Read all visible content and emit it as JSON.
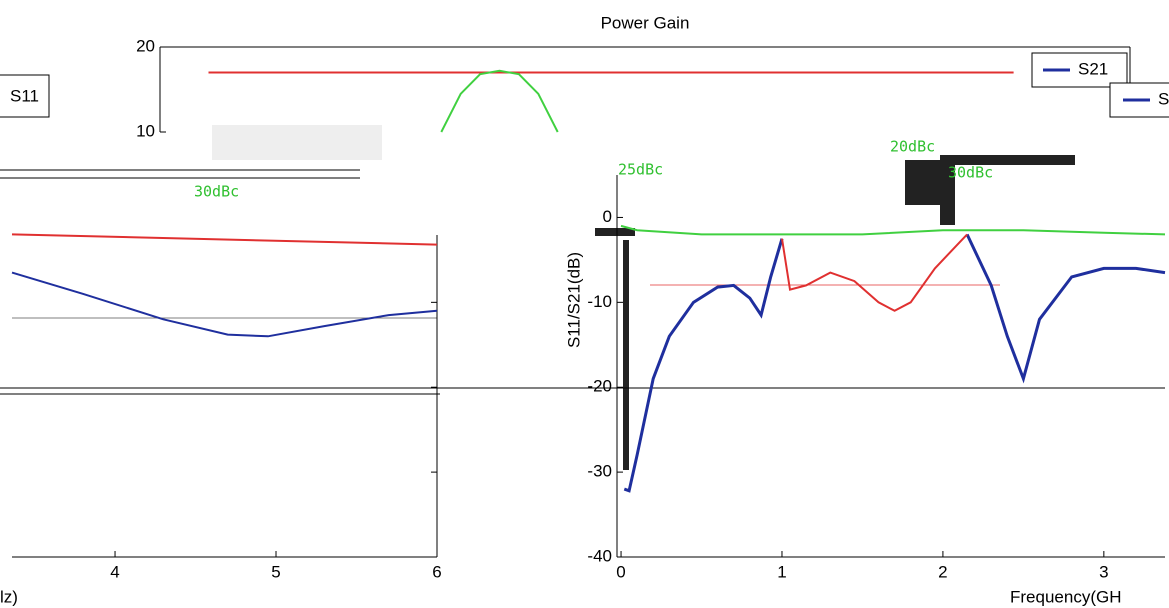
{
  "chart_data": [
    {
      "type": "line",
      "ylabel": "S11/S21(dB)",
      "xlabel": "Frequency(GH",
      "xlim": [
        -0.05,
        3.38
      ],
      "ylim": [
        -40,
        5
      ],
      "xticks": [
        0,
        1,
        2,
        3
      ],
      "yticks": [
        -40,
        -30,
        -20,
        -10,
        0
      ],
      "series": [
        {
          "name": "S21",
          "color": "#1f2f9e",
          "x": [
            0.02,
            0.05,
            0.1,
            0.2,
            0.3,
            0.45,
            0.6,
            0.7,
            0.8,
            0.87,
            0.93,
            1.0,
            1.5,
            2.15,
            2.3,
            2.4,
            2.5,
            2.6,
            2.8,
            3.0,
            3.2,
            3.38
          ],
          "values": [
            -32,
            -32.2,
            -28,
            -19,
            -14,
            -10,
            -8.2,
            -8,
            -9.5,
            -11.5,
            -7,
            -2.5,
            null,
            -2,
            -8,
            -14,
            -19,
            -12,
            -7,
            -6,
            -6,
            -6.5
          ]
        },
        {
          "color": "#e03030",
          "x": [
            1.0,
            1.05,
            1.15,
            1.3,
            1.45,
            1.6,
            1.7,
            1.8,
            1.95,
            2.1,
            2.15
          ],
          "values": [
            -2.5,
            -8.5,
            -8,
            -6.5,
            -7.5,
            -10,
            -11,
            -10,
            -6,
            -3,
            -2
          ]
        },
        {
          "color": "#40d040",
          "x": [
            0,
            0.1,
            0.5,
            1,
            1.5,
            2,
            2.5,
            3,
            3.38
          ],
          "values": [
            -1,
            -1.5,
            -2,
            -2,
            -2,
            -1.5,
            -1.5,
            -1.8,
            -2
          ]
        }
      ],
      "annotations": [
        "25dBc",
        "20dBc",
        "30dBc"
      ]
    },
    {
      "type": "line",
      "xlabel": "lz)",
      "xlim": [
        3.36,
        6
      ],
      "ylim": [
        -40,
        5
      ],
      "xticks": [
        4,
        5,
        6
      ],
      "series": [
        {
          "color": "#1f2f9e",
          "x": [
            3.36,
            3.8,
            4.3,
            4.7,
            4.95,
            5.3,
            5.7,
            6
          ],
          "values": [
            -6.5,
            -9,
            -12,
            -13.8,
            -14,
            -12.8,
            -11.5,
            -11
          ]
        },
        {
          "color": "#e03030",
          "x": [
            3.36,
            6
          ],
          "values": [
            -2,
            -3.2
          ]
        }
      ],
      "legend": [
        "S11"
      ],
      "annotations": [
        "30dBc"
      ]
    },
    {
      "type": "line",
      "title": "Power Gain",
      "xlim": [
        0,
        1
      ],
      "ylim": [
        0,
        20
      ],
      "yticks": [
        10,
        20
      ],
      "series": [
        {
          "color": "#e03030",
          "x": [
            0.05,
            0.88
          ],
          "values": [
            17,
            17
          ]
        },
        {
          "color": "#40d040",
          "x": [
            0.29,
            0.31,
            0.33,
            0.35,
            0.37,
            0.39,
            0.41
          ],
          "values": [
            10,
            14.5,
            16.8,
            17.2,
            16.8,
            14.5,
            10
          ]
        }
      ],
      "legend": [
        "S21",
        "S"
      ]
    }
  ]
}
